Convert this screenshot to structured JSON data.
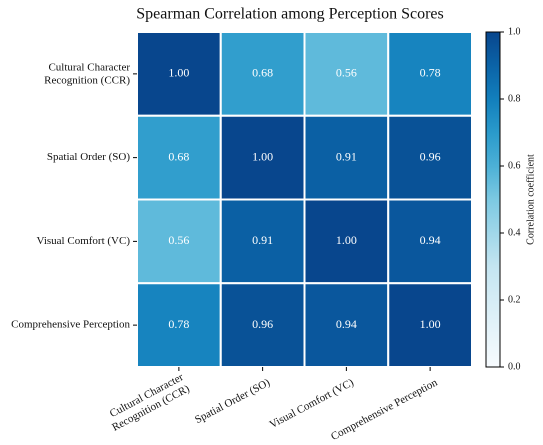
{
  "chart_data": {
    "type": "heatmap",
    "title": "Spearman Correlation among Perception Scores",
    "categories": [
      "Cultural Character\nRecognition (CCR)",
      "Spatial Order (SO)",
      "Visual Comfort (VC)",
      "Comprehensive Perception"
    ],
    "values": [
      [
        1.0,
        0.68,
        0.56,
        0.78
      ],
      [
        0.68,
        1.0,
        0.91,
        0.96
      ],
      [
        0.56,
        0.91,
        1.0,
        0.94
      ],
      [
        0.78,
        0.96,
        0.94,
        1.0
      ]
    ],
    "value_labels": [
      [
        "1.00",
        "0.68",
        "0.56",
        "0.78"
      ],
      [
        "0.68",
        "1.00",
        "0.91",
        "0.96"
      ],
      [
        "0.56",
        "0.91",
        "1.00",
        "0.94"
      ],
      [
        "0.78",
        "0.96",
        "0.94",
        "1.00"
      ]
    ],
    "colorbar_label": "Correlation coefficient",
    "ylim": [
      0,
      1
    ],
    "yticks": [
      {
        "value": 0,
        "label": "0.0"
      },
      {
        "value": 0.2,
        "label": "0.2"
      },
      {
        "value": 0.4,
        "label": "0.4"
      },
      {
        "value": 0.6,
        "label": "0.6"
      },
      {
        "value": 0.8,
        "label": "0.8"
      },
      {
        "value": 1,
        "label": "1.0"
      }
    ],
    "colorscale": [
      [
        0,
        "#f7fbfe"
      ],
      [
        0.3,
        "#c4e5f1"
      ],
      [
        0.5,
        "#7cc9e2"
      ],
      [
        0.6,
        "#4cb0d6"
      ],
      [
        0.7,
        "#2a9acb"
      ],
      [
        0.8,
        "#127fbc"
      ],
      [
        0.9,
        "#0b63a7"
      ],
      [
        1,
        "#08468d"
      ]
    ]
  }
}
